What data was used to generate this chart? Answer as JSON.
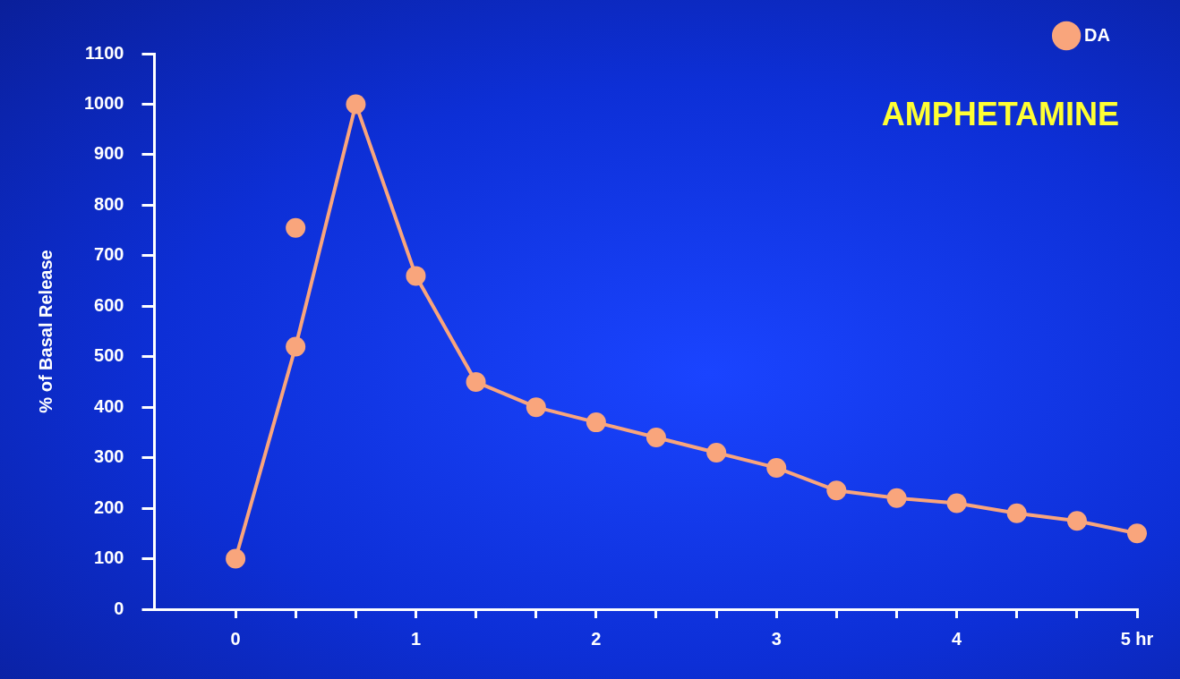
{
  "chart_data": {
    "type": "line",
    "title": "AMPHETAMINE",
    "ylabel": "% of Basal Release",
    "xlim": [
      -0.45,
      5
    ],
    "xticks": [
      0,
      {
        "value": 0.333,
        "label": null
      },
      {
        "value": 0.667,
        "label": null
      },
      1,
      {
        "value": 1.333,
        "label": null
      },
      {
        "value": 1.667,
        "label": null
      },
      2,
      {
        "value": 2.333,
        "label": null
      },
      {
        "value": 2.667,
        "label": null
      },
      3,
      {
        "value": 3.333,
        "label": null
      },
      {
        "value": 3.667,
        "label": null
      },
      4,
      {
        "value": 4.333,
        "label": null
      },
      {
        "value": 4.667,
        "label": null
      },
      {
        "value": 5,
        "label": "5 hr"
      }
    ],
    "ylim": [
      0,
      1100
    ],
    "yticks": [
      0,
      100,
      200,
      300,
      400,
      500,
      600,
      700,
      800,
      900,
      1000,
      1100
    ],
    "grid": false,
    "legend": "top right",
    "marker": "circle",
    "line_style": "solid",
    "series": [
      {
        "name": "DA",
        "color": "#f9a57c",
        "x": [
          0,
          0.333,
          0.667,
          1,
          1.333,
          1.667,
          2,
          2.333,
          2.667,
          3,
          3.333,
          3.667,
          4,
          4.333,
          4.667,
          5
        ],
        "values": [
          100,
          520,
          1000,
          660,
          450,
          400,
          370,
          340,
          310,
          280,
          235,
          220,
          210,
          190,
          175,
          150
        ]
      },
      {
        "type": "scatter",
        "color": "#f9a57c",
        "x": [
          0.333
        ],
        "values": [
          755
        ]
      }
    ]
  }
}
